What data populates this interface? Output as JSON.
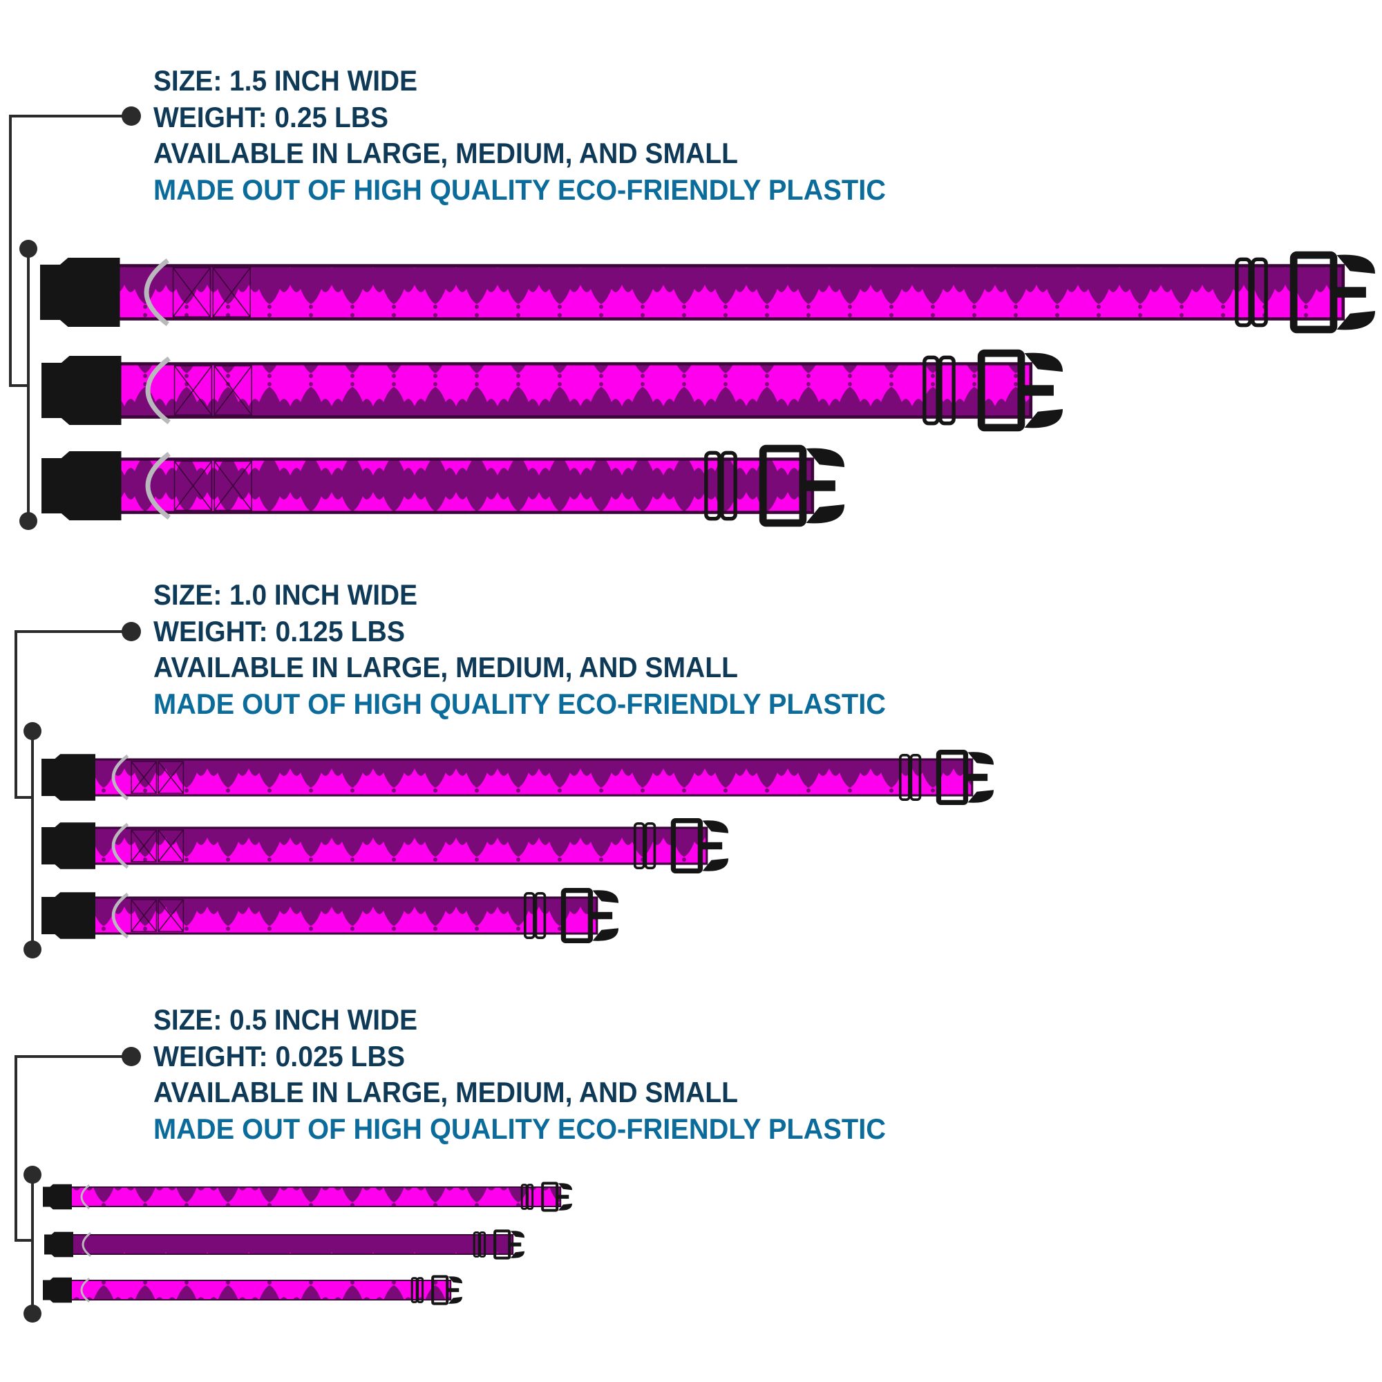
{
  "colors": {
    "text_dark": "#0f3a57",
    "text_accent": "#0b6c9c",
    "collar_pink": "#ff00ee",
    "collar_pattern": "#6e0a6c",
    "hardware": "#151515",
    "ring": "#b9b9bd",
    "bracket": "#2b2b2b"
  },
  "sections": [
    {
      "size": "SIZE: 1.5 INCH WIDE",
      "weight": "WEIGHT: 0.25 LBS",
      "availability": "AVAILABLE IN LARGE, MEDIUM, AND SMALL",
      "material": "MADE OUT OF HIGH QUALITY ECO-FRIENDLY PLASTIC"
    },
    {
      "size": "SIZE: 1.0 INCH WIDE",
      "weight": "WEIGHT: 0.125 LBS",
      "availability": "AVAILABLE IN LARGE, MEDIUM, AND SMALL",
      "material": "MADE OUT OF HIGH QUALITY ECO-FRIENDLY PLASTIC"
    },
    {
      "size": "SIZE: 0.5 INCH WIDE",
      "weight": "WEIGHT: 0.025 LBS",
      "availability": "AVAILABLE IN LARGE, MEDIUM, AND SMALL",
      "material": "MADE OUT OF HIGH QUALITY ECO-FRIENDLY PLASTIC"
    }
  ]
}
